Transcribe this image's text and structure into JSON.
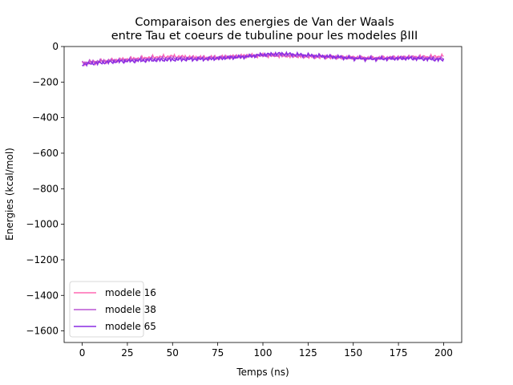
{
  "chart_data": {
    "type": "line",
    "title_lines": [
      "Comparaison des energies de Van der Waals",
      "entre Tau et coeurs de tubuline pour les modeles βIII"
    ],
    "xlabel": "Temps (ns)",
    "ylabel": "Energies (kcal/mol)",
    "xlim": [
      -10,
      210
    ],
    "ylim": [
      -1665,
      0
    ],
    "xticks": [
      0,
      25,
      50,
      75,
      100,
      125,
      150,
      175,
      200
    ],
    "yticks": [
      0,
      -200,
      -400,
      -600,
      -800,
      -1000,
      -1200,
      -1400,
      -1600
    ],
    "legend_position": "lower-left",
    "x": [
      0,
      10,
      20,
      30,
      40,
      50,
      60,
      70,
      80,
      90,
      100,
      110,
      120,
      130,
      140,
      150,
      160,
      170,
      180,
      190,
      200
    ],
    "series": [
      {
        "name": "modele 16",
        "color": "#ff69b4",
        "values": [
          -95,
          -85,
          -75,
          -68,
          -60,
          -55,
          -60,
          -62,
          -58,
          -52,
          -50,
          -52,
          -55,
          -58,
          -60,
          -62,
          -65,
          -62,
          -60,
          -58,
          -55
        ]
      },
      {
        "name": "modele 38",
        "color": "#ba55d3",
        "values": [
          -90,
          -82,
          -78,
          -72,
          -68,
          -65,
          -66,
          -64,
          -60,
          -55,
          -50,
          -48,
          -52,
          -56,
          -60,
          -64,
          -66,
          -65,
          -62,
          -63,
          -68
        ]
      },
      {
        "name": "modele 65",
        "color": "#8a2be2",
        "values": [
          -100,
          -92,
          -84,
          -80,
          -76,
          -74,
          -72,
          -70,
          -64,
          -58,
          -45,
          -40,
          -46,
          -52,
          -58,
          -66,
          -70,
          -68,
          -66,
          -70,
          -75
        ]
      }
    ]
  }
}
